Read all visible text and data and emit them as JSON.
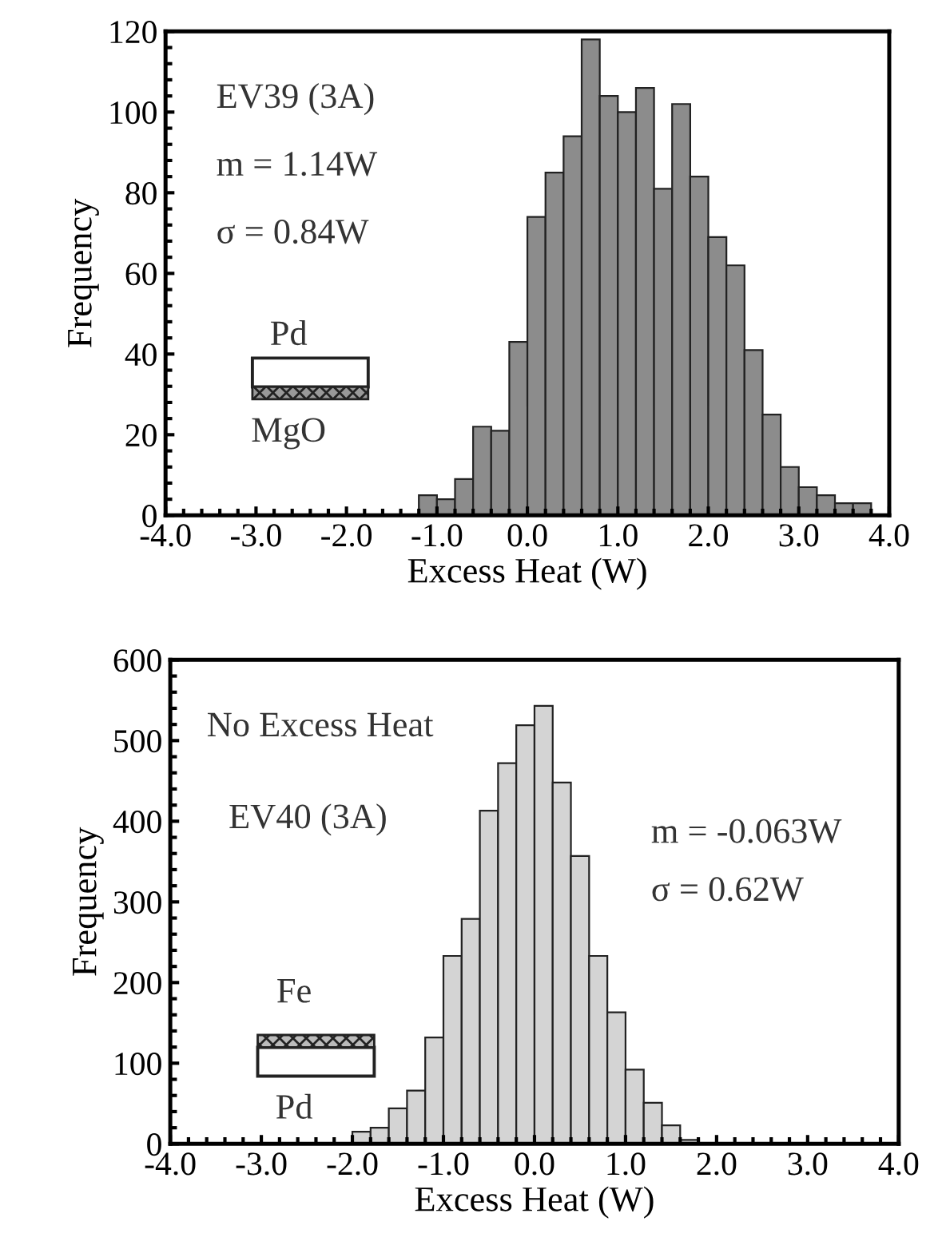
{
  "chart_data": [
    {
      "type": "histogram",
      "xlabel": "Excess Heat (W)",
      "ylabel": "Frequency",
      "color": "#8c8c8c",
      "bins": [
        -1.2,
        -1.0,
        -0.8,
        -0.6,
        -0.4,
        -0.2,
        0.0,
        0.2,
        0.4,
        0.6,
        0.8,
        1.0,
        1.2,
        1.4,
        1.6,
        1.8,
        2.0,
        2.2,
        2.4,
        2.6,
        2.8,
        3.0,
        3.2,
        3.4,
        3.6,
        3.8
      ],
      "values": [
        5,
        4,
        9,
        22,
        21,
        43,
        74,
        85,
        94,
        118,
        104,
        100,
        106,
        81,
        102,
        84,
        69,
        62,
        41,
        25,
        12,
        7,
        5,
        3,
        3
      ],
      "xlim": [
        -4.0,
        4.0
      ],
      "xticks": [
        {
          "value": -4,
          "label": "-4.0"
        },
        {
          "value": -3,
          "label": "-3.0"
        },
        {
          "value": -2,
          "label": "-2.0"
        },
        {
          "value": -1,
          "label": "-1.0"
        },
        {
          "value": 0,
          "label": "0.0"
        },
        {
          "value": 1,
          "label": "1.0"
        },
        {
          "value": 2,
          "label": "2.0"
        },
        {
          "value": 3,
          "label": "3.0"
        },
        {
          "value": 4,
          "label": "4.0"
        }
      ],
      "ylim": [
        0,
        120
      ],
      "yticks": [
        0,
        20,
        40,
        60,
        80,
        100,
        120
      ],
      "annotations": [
        "EV39 (3A)",
        "m = 1.14W",
        "σ = 0.84W",
        "Pd",
        "MgO"
      ]
    },
    {
      "type": "histogram",
      "xlabel": "Excess Heat (W)",
      "ylabel": "Frequency",
      "color": "#d4d4d4",
      "bins": [
        -2.0,
        -1.8,
        -1.6,
        -1.4,
        -1.2,
        -1.0,
        -0.8,
        -0.6,
        -0.4,
        -0.2,
        0.0,
        0.2,
        0.4,
        0.6,
        0.8,
        1.0,
        1.2,
        1.4,
        1.6,
        1.8
      ],
      "values": [
        15,
        20,
        44,
        66,
        132,
        233,
        279,
        413,
        472,
        519,
        543,
        448,
        357,
        233,
        163,
        92,
        51,
        23,
        5
      ],
      "xlim": [
        -4.0,
        4.0
      ],
      "xticks": [
        {
          "value": -4,
          "label": "-4.0"
        },
        {
          "value": -3,
          "label": "-3.0"
        },
        {
          "value": -2,
          "label": "-2.0"
        },
        {
          "value": -1,
          "label": "-1.0"
        },
        {
          "value": 0,
          "label": "0.0"
        },
        {
          "value": 1,
          "label": "1.0"
        },
        {
          "value": 2,
          "label": "2.0"
        },
        {
          "value": 3,
          "label": "3.0"
        },
        {
          "value": 4,
          "label": "4.0"
        }
      ],
      "ylim": [
        0,
        600
      ],
      "yticks": [
        0,
        100,
        200,
        300,
        400,
        500,
        600
      ],
      "annotations": [
        "No Excess Heat",
        "EV40 (3A)",
        "m = -0.063W",
        "σ = 0.62W",
        "Fe",
        "Pd"
      ]
    }
  ]
}
